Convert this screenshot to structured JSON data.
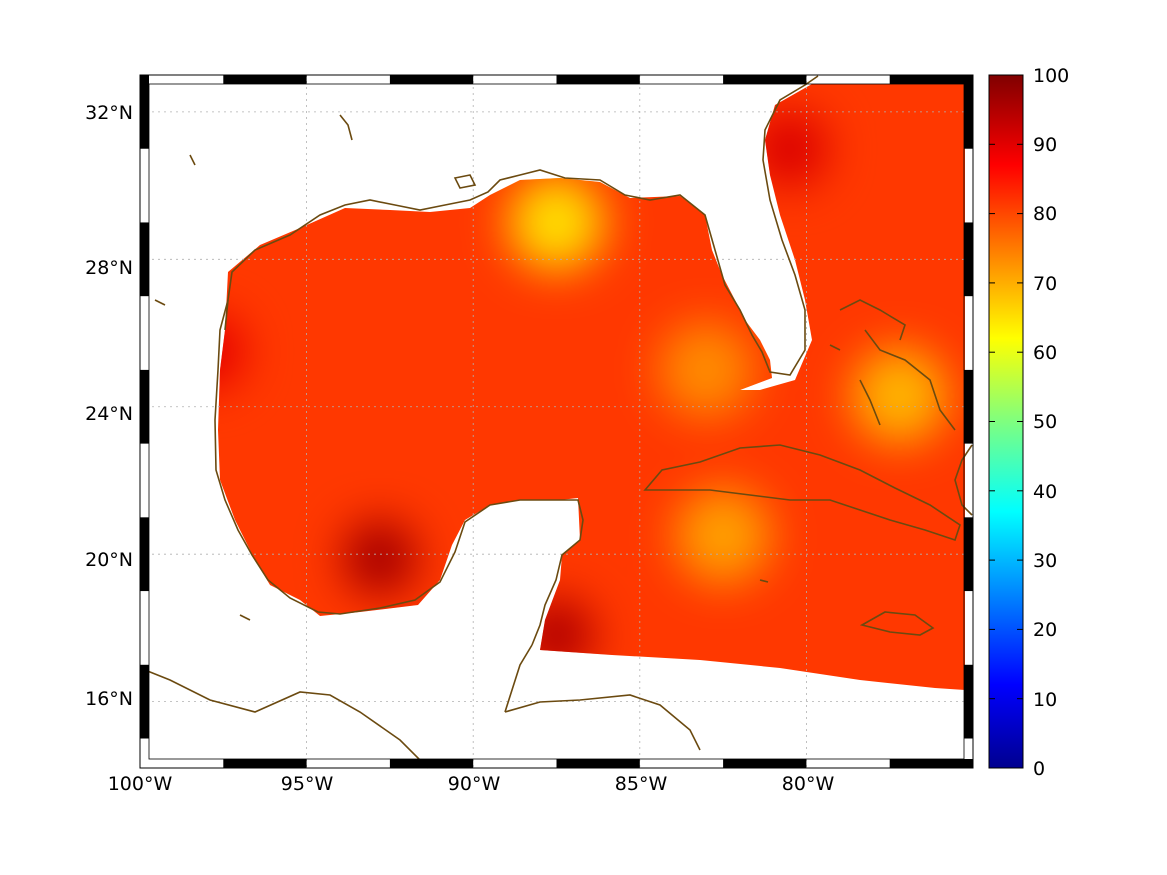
{
  "map": {
    "lon_labels": [
      "100°W",
      "95°W",
      "90°W",
      "85°W",
      "80°W"
    ],
    "lat_labels": [
      "32°N",
      "28°N",
      "24°N",
      "20°N",
      "16°N"
    ],
    "lon_range": [
      -100,
      -75
    ],
    "lat_range": [
      14.2,
      33
    ],
    "grid_lines": true,
    "coastline_color": "#6b4a10",
    "land_color": "#ffffff"
  },
  "colorbar": {
    "range": [
      0,
      100
    ],
    "tick_labels": [
      "100",
      "90",
      "80",
      "70",
      "60",
      "50",
      "40",
      "30",
      "20",
      "10",
      "0"
    ],
    "colormap": "jet"
  },
  "field": {
    "typical_value": 82,
    "hotspots": [
      {
        "lon": -92.8,
        "lat": 19.9,
        "value": 96
      },
      {
        "lon": -87.5,
        "lat": 17.8,
        "value": 95
      },
      {
        "lon": -98.0,
        "lat": 25.5,
        "value": 90
      },
      {
        "lon": -80.5,
        "lat": 31.0,
        "value": 91
      }
    ],
    "lowspots": [
      {
        "lon": -87.5,
        "lat": 29.0,
        "value": 66
      },
      {
        "lon": -82.5,
        "lat": 20.5,
        "value": 72
      },
      {
        "lon": -77.2,
        "lat": 24.3,
        "value": 70
      },
      {
        "lon": -83.0,
        "lat": 25.0,
        "value": 74
      }
    ]
  }
}
